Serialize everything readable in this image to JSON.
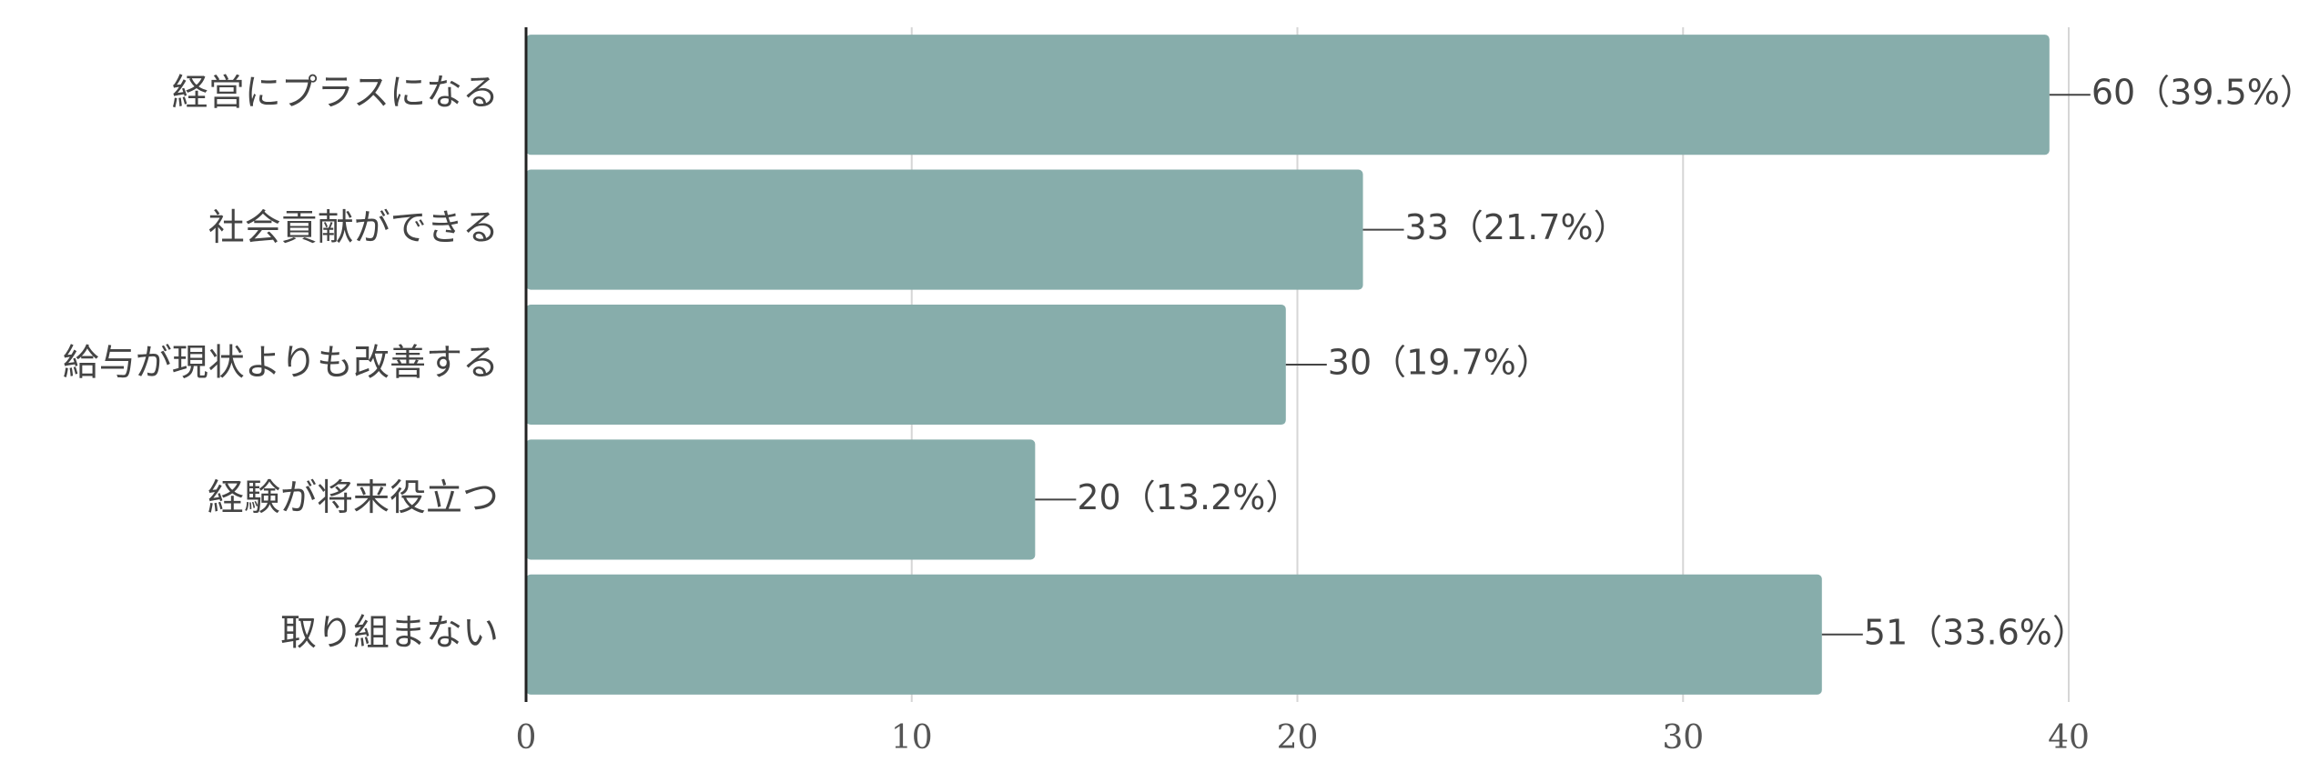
{
  "chart_data": {
    "type": "bar",
    "orientation": "horizontal",
    "categories": [
      "経営にプラスになる",
      "社会貢献ができる",
      "給与が現状よりも改善する",
      "経験が将来役立つ",
      "取り組まない"
    ],
    "values": [
      39.5,
      21.7,
      19.7,
      13.2,
      33.6
    ],
    "value_labels": [
      "60（39.5%）",
      "33（21.7%）",
      "30（19.7%）",
      "20（13.2%）",
      "51（33.6%）"
    ],
    "color": "#87adab",
    "xlim": [
      0,
      40
    ],
    "xticks": [
      0,
      10,
      20,
      30,
      40
    ],
    "grid": true
  }
}
